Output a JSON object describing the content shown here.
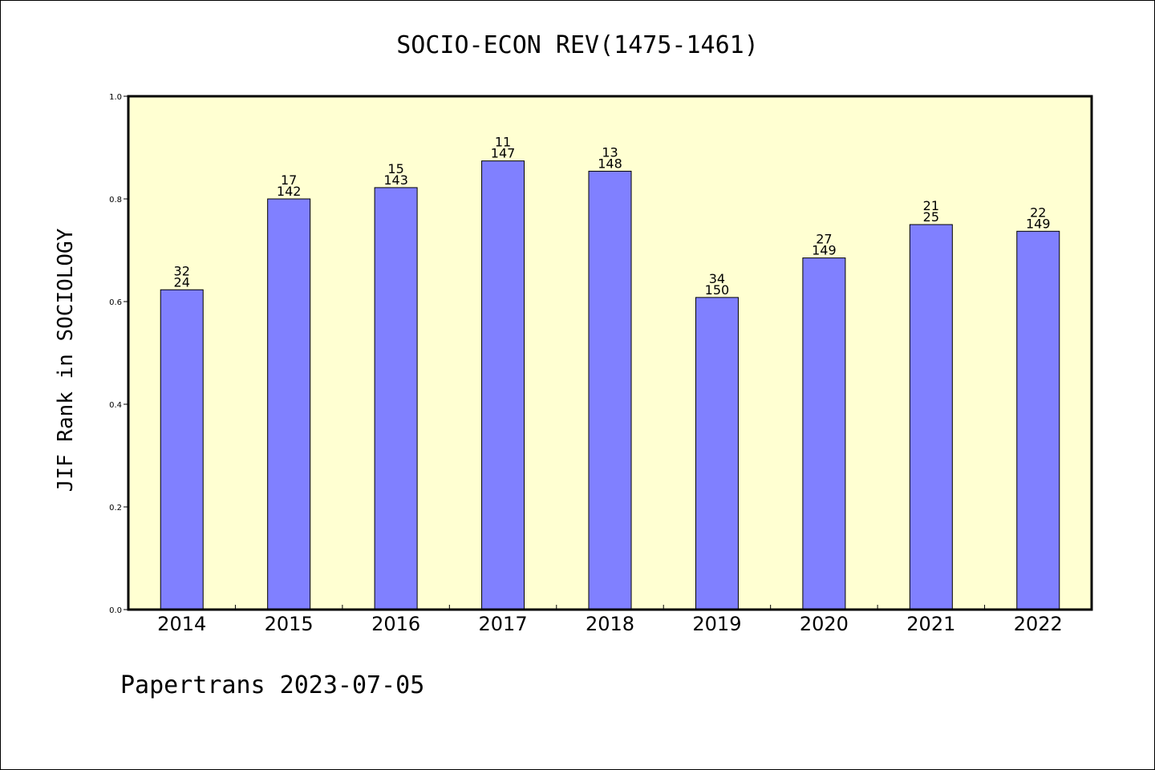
{
  "colors": {
    "plot_background": "#ffffd2",
    "bar_fill": "#8080ff",
    "bar_stroke": "#000000"
  },
  "footer": "Papertrans 2023-07-05",
  "chart_data": {
    "type": "bar",
    "title": "SOCIO-ECON REV(1475-1461)",
    "xlabel": "",
    "ylabel": "JIF Rank in SOCIOLOGY",
    "ylim": [
      0,
      1.0
    ],
    "yticks": [
      "0.0",
      "0.2",
      "0.4",
      "0.6",
      "0.8",
      "1.0"
    ],
    "grid": false,
    "categories": [
      "2014",
      "2015",
      "2016",
      "2017",
      "2018",
      "2019",
      "2020",
      "2021",
      "2022"
    ],
    "values": [
      0.623,
      0.8,
      0.822,
      0.874,
      0.854,
      0.608,
      0.685,
      0.75,
      0.737
    ],
    "labels_top": [
      "32",
      "17",
      "15",
      "11",
      "13",
      "34",
      "27",
      "21",
      "22"
    ],
    "labels_bottom": [
      "24",
      "142",
      "143",
      "147",
      "148",
      "150",
      "149",
      "25",
      "149"
    ]
  }
}
